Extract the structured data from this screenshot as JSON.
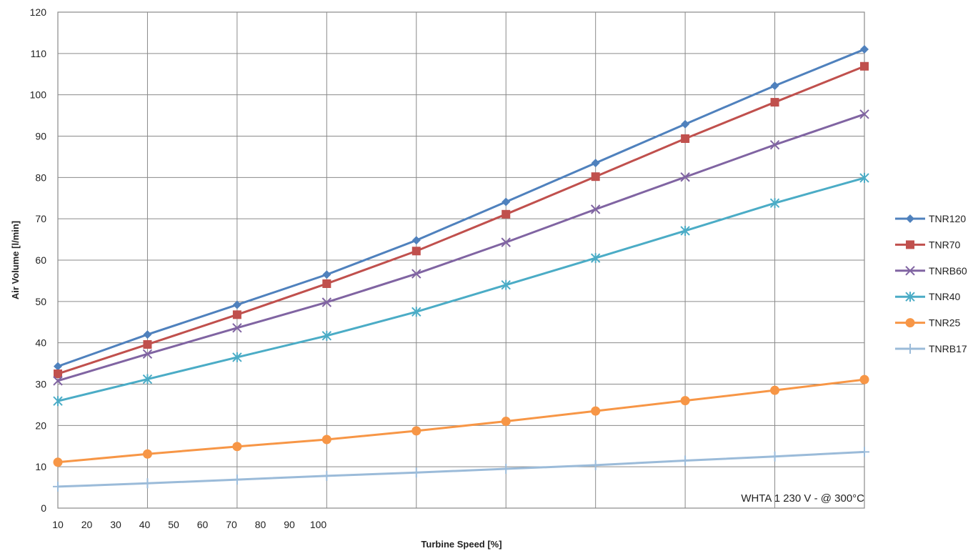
{
  "chart_data": {
    "type": "line",
    "xlabel": "Turbine Speed [%]",
    "ylabel": "Air Volume [l/min]",
    "ylim": [
      0,
      120
    ],
    "y_ticks": [
      "0",
      "10",
      "20",
      "30",
      "40",
      "50",
      "60",
      "70",
      "80",
      "90",
      "100",
      "110",
      "120"
    ],
    "x_tick_labels": [
      "10",
      "20",
      "30",
      "40",
      "50",
      "60",
      "70",
      "80",
      "90",
      "100"
    ],
    "grid": true,
    "legend_position": "right",
    "annotation": "WHTA 1 230 V - @ 300°C",
    "series": [
      {
        "name": "TNR120",
        "color": "#4f81bd",
        "marker": "diamond",
        "values": [
          34.3,
          42,
          49.2,
          56.5,
          64.8,
          74.1,
          83.5,
          92.9,
          102.2,
          111
        ]
      },
      {
        "name": "TNR70",
        "color": "#c0504d",
        "marker": "square",
        "values": [
          32.5,
          39.6,
          46.8,
          54.3,
          62.2,
          71.1,
          80.2,
          89.4,
          98.2,
          106.9
        ]
      },
      {
        "name": "TNRB60",
        "color": "#8064a2",
        "marker": "x",
        "values": [
          30.8,
          37.3,
          43.6,
          49.8,
          56.7,
          64.3,
          72.3,
          80.1,
          87.9,
          95.3
        ]
      },
      {
        "name": "TNR40",
        "color": "#4bacc6",
        "marker": "star",
        "values": [
          25.9,
          31.2,
          36.5,
          41.7,
          47.5,
          54.0,
          60.5,
          67.1,
          73.8,
          79.9
        ]
      },
      {
        "name": "TNR25",
        "color": "#f79646",
        "marker": "circle",
        "values": [
          11.1,
          13.1,
          14.9,
          16.6,
          18.7,
          21.0,
          23.5,
          26.0,
          28.5,
          31.1
        ]
      },
      {
        "name": "TNRB17",
        "color": "#9bbbd9",
        "marker": "plus",
        "values": [
          5.2,
          6.0,
          6.9,
          7.8,
          8.6,
          9.5,
          10.4,
          11.5,
          12.5,
          13.6
        ]
      }
    ]
  }
}
